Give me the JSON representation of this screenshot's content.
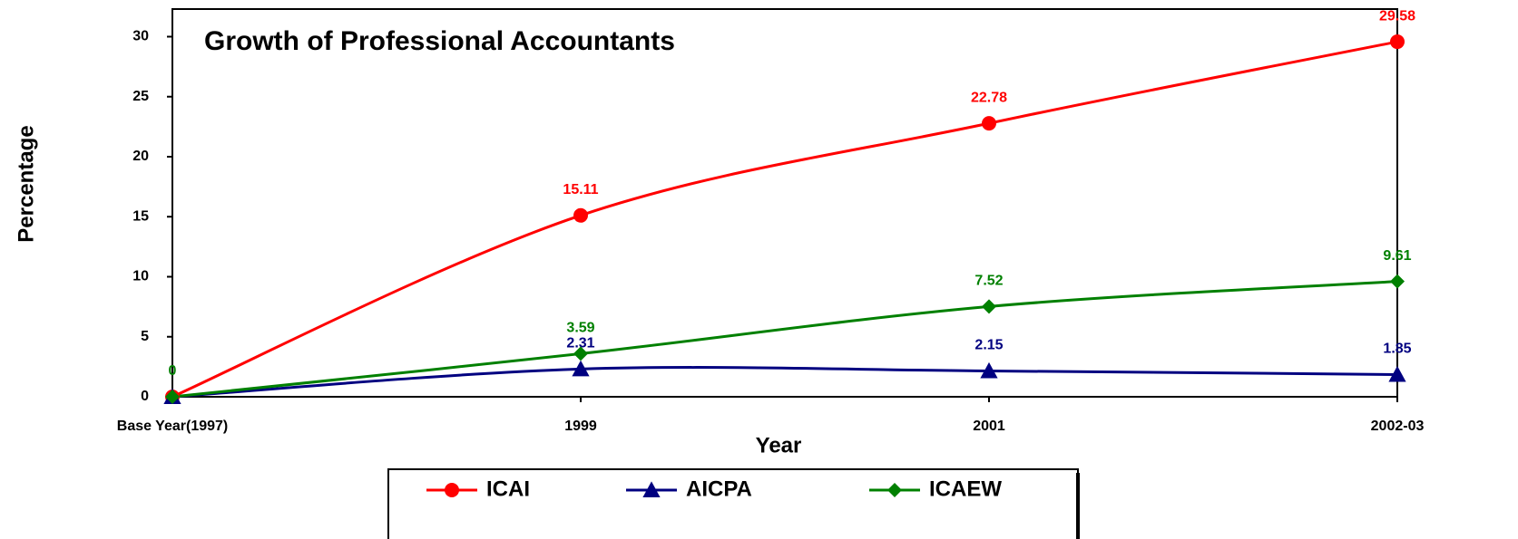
{
  "chart_data": {
    "type": "line",
    "title": "Growth of Professional Accountants",
    "x_label": "Year",
    "y_label": "Percentage",
    "categories": [
      "Base Year(1997)",
      "1999",
      "2001",
      "2002-03"
    ],
    "series": [
      {
        "name": "ICAI",
        "color": "#ff0000",
        "marker": "circle",
        "values": [
          0,
          15.11,
          22.78,
          29.58
        ],
        "value_labels": [
          null,
          "15.11",
          "22.78",
          "29.58"
        ]
      },
      {
        "name": "AICPA",
        "color": "#000080",
        "marker": "triangle",
        "values": [
          0,
          2.31,
          2.15,
          1.85
        ],
        "value_labels": [
          null,
          "2.31",
          "2.15",
          "1.85"
        ]
      },
      {
        "name": "ICAEW",
        "color": "#008000",
        "marker": "diamond",
        "values": [
          0,
          3.59,
          7.52,
          9.61
        ],
        "value_labels": [
          "0",
          "3.59",
          "7.52",
          "9.61"
        ]
      }
    ],
    "ylim": [
      0,
      32.3
    ],
    "yticks": [
      0,
      5,
      10,
      15,
      20,
      25,
      30
    ],
    "smooth": true,
    "legend": "bottom"
  }
}
